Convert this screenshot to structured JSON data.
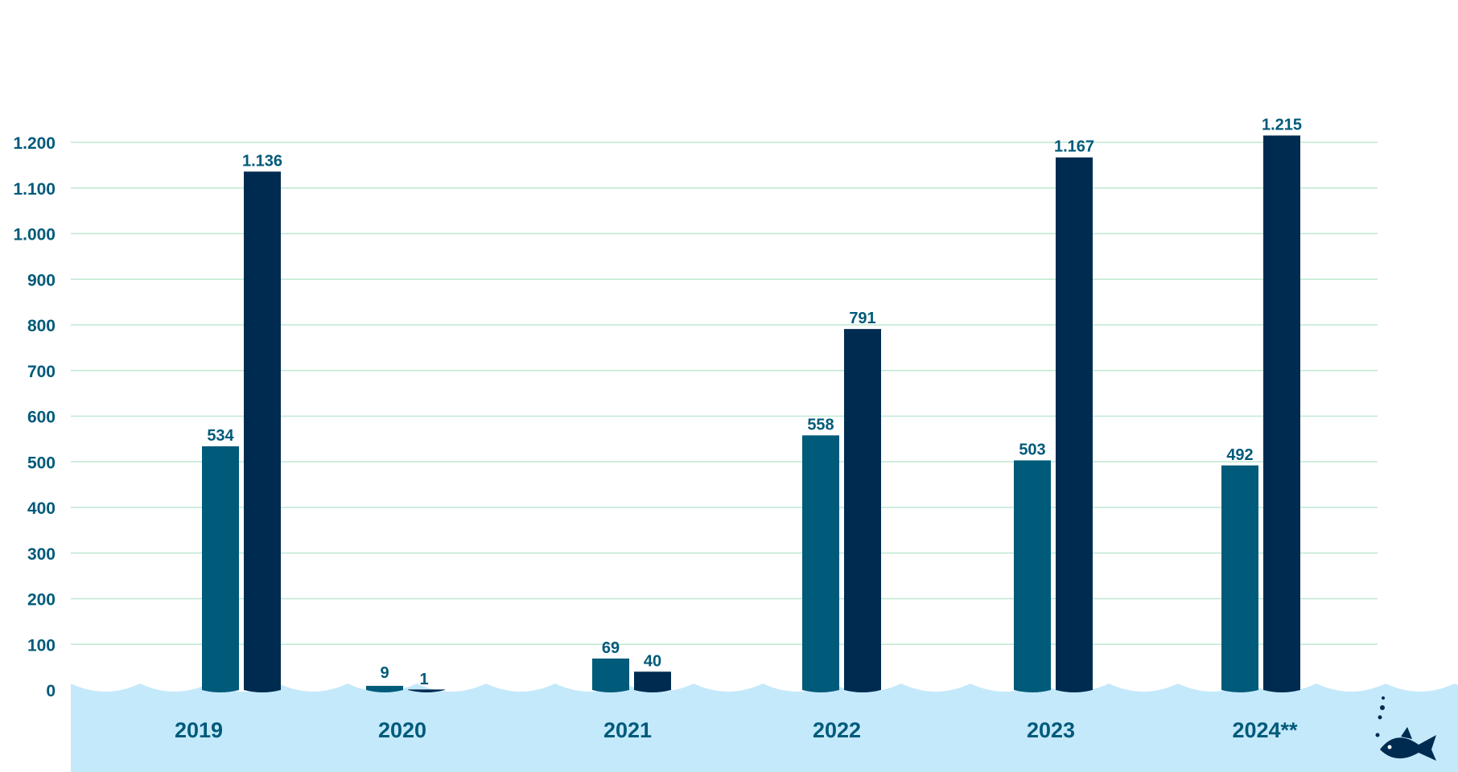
{
  "chart_data": {
    "type": "bar",
    "categories": [
      "2019",
      "2020",
      "2021",
      "2022",
      "2023",
      "2024**"
    ],
    "series": [
      {
        "values": [
          534,
          9,
          69,
          558,
          503,
          492
        ],
        "labels": [
          "534",
          "9",
          "69",
          "558",
          "503",
          "492"
        ]
      },
      {
        "values": [
          1136,
          1,
          40,
          791,
          1167,
          1215
        ],
        "labels": [
          "1.136",
          "1",
          "40",
          "791",
          "1.167",
          "1.215"
        ]
      }
    ],
    "y_ticks": [
      0,
      100,
      200,
      300,
      400,
      500,
      600,
      700,
      800,
      900,
      1000,
      1100,
      1200
    ],
    "y_tick_labels": [
      "0",
      "100",
      "200",
      "300",
      "400",
      "500",
      "600",
      "700",
      "800",
      "900",
      "1.000",
      "1.100",
      "1.200"
    ],
    "ylim": [
      0,
      1200
    ],
    "grid": true,
    "legend": "none"
  },
  "colors": {
    "series_1": "#005a7a",
    "series_2": "#002b50",
    "axis_text": "#005a7a",
    "gridline": "#bfe8d2",
    "water": "#c4e9fb",
    "fish": "#002b50"
  },
  "decorations": {
    "fish_icon": "fish-icon"
  }
}
